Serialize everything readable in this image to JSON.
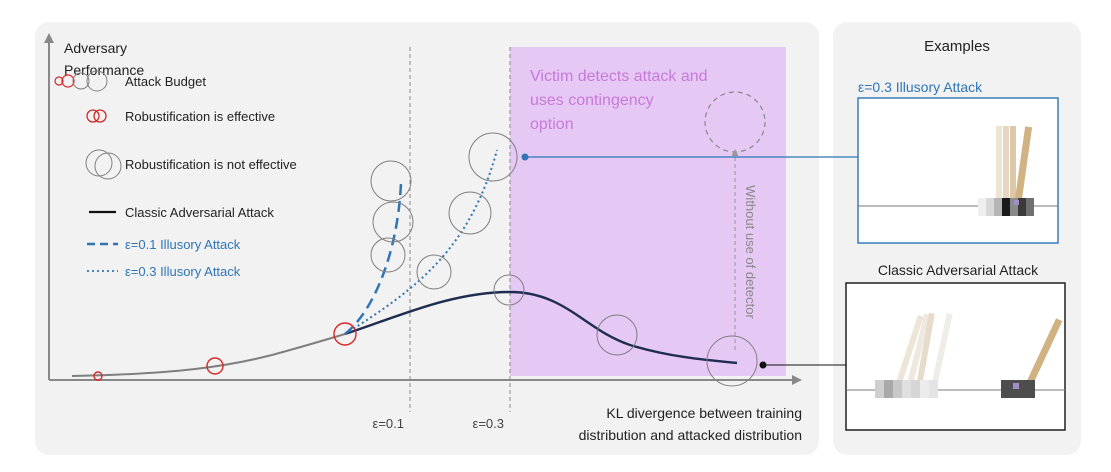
{
  "axes": {
    "y_label_line1": "Adversary",
    "y_label_line2": "Performance",
    "x_label_line1": "KL divergence between training",
    "x_label_line2": "distribution and attacked distribution",
    "tick_eps01": "ε=0.1",
    "tick_eps03": "ε=0.3"
  },
  "legend": {
    "attack_budget": "Attack Budget",
    "robust_effective": "Robustification is effective",
    "robust_not_effective": "Robustification is not effective",
    "classic": "Classic Adversarial Attack",
    "eps01": "ε=0.1 Illusory Attack",
    "eps03": "ε=0.3 Illusory Attack"
  },
  "detection_zone": {
    "line1": "Victim detects attack and",
    "line2": "uses contingency",
    "line3": "option",
    "vertical_note": "Without use of detector"
  },
  "examples": {
    "title": "Examples",
    "illusory_label": "ε=0.3 Illusory Attack",
    "classic_label": "Classic Adversarial Attack"
  },
  "colors": {
    "panel_bg": "#f2f2f2",
    "detect_zone": "#e6c8f5",
    "detect_text": "#c77ad8",
    "classic_line": "#1f2d50",
    "illusory_blue": "#2e75b6",
    "budget_red": "#d62728",
    "budget_gray": "#7f7f7f"
  }
}
